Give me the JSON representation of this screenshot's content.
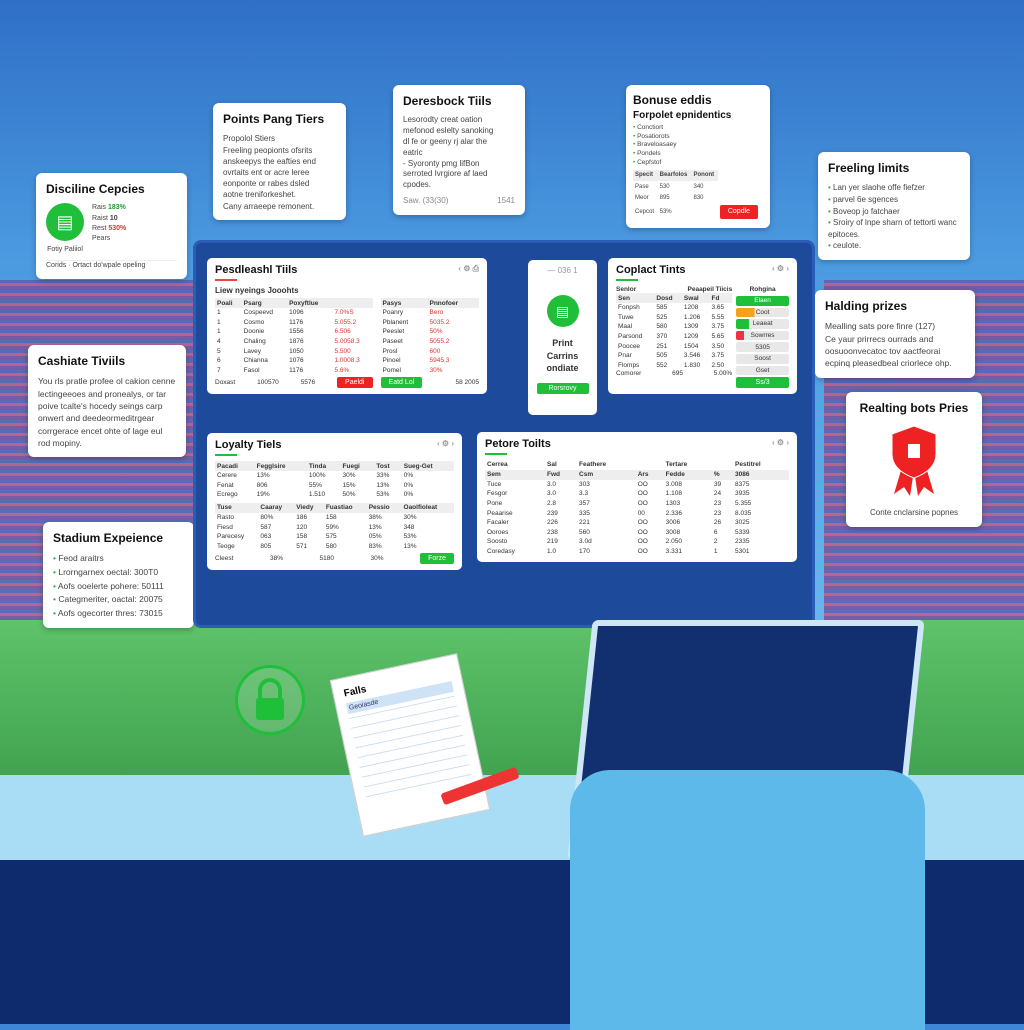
{
  "colors": {
    "accent_green": "#1fbf3a",
    "accent_red": "#ee2222",
    "frame": "#1d4a9b"
  },
  "cards": {
    "discipline": {
      "title": "Disciline Cepcies",
      "icon": "clipboard-icon",
      "label": "Fotiy Paliiol",
      "stats": [
        {
          "label": "Rais",
          "value": "183%"
        },
        {
          "label": "Raist",
          "value": "10"
        },
        {
          "label": "Rest",
          "value": "530%"
        },
        {
          "label": "Pears",
          "value": ""
        }
      ],
      "footer": "Corids · Ortact do'wpale opeling"
    },
    "points": {
      "title": "Points Pang Tiers",
      "lines": [
        "Propolol Stiers",
        "Freeling peopionts ofsrits",
        "anskeepys the eafties end",
        "ovrtaits ent or acre leree",
        "eonponte or rabes dsled",
        "aotne treniforkeshet.",
        "Cany arraeepe remonent."
      ]
    },
    "deresbock": {
      "title": "Deresbock Tiils",
      "lines": [
        "Lesorodty creat oation",
        "mefonod eslelty sanoking",
        "dl fe or geeny rj alar the",
        "eatric",
        "- Syoronty pmg lifBon",
        "serroted Ivrgiore af laed",
        "cpodes."
      ],
      "footer_left": "Saw. (33(30)",
      "footer_right": "1541"
    },
    "bonus": {
      "title": "Bonuse eddis",
      "subtitle": "Forpolet epnidentics",
      "items": [
        "Conctiort",
        "Posatiorots",
        "Braveloasaey",
        "Pondels",
        "Cepfstof"
      ],
      "table_headers": [
        "Specit",
        "Bearfolos",
        "Ponont"
      ],
      "rows": [
        [
          "Pase",
          "530",
          "340"
        ],
        [
          "Meor",
          "895",
          "830"
        ],
        [
          "Cepcot",
          "53%",
          ""
        ]
      ],
      "button": "Copdle"
    },
    "freeling": {
      "title": "Freeling limits",
      "items": [
        "Lan yer slaohe offe fiefzer",
        "parvel 6e sgences",
        "Boveop jo fatchaer",
        "Sroiry of lnpe sharn of tettorti wanc epitoces.",
        "ceulote."
      ]
    },
    "cashiate": {
      "title": "Cashiate Tiviils",
      "text": "You rls pratle profee ol cakion cenne lectingeeoes and pronealys, or tar poive tcalte's hocedy seings carp onwert and deedeormeditrgear corrgerace encet ohte of lage eul rod mopiny."
    },
    "stadium": {
      "title": "Stadium Expeience",
      "items": [
        "Feod araitrs",
        "Lrorngarnex oectal: 300T0",
        "Aofs ooelerte pohere: 50111",
        "Categmeriter, oactal: 20075",
        "Aofs ogecorter thres: 73015"
      ]
    },
    "halding": {
      "title": "Halding prizes",
      "line": "Mealling sats pore finre (127)",
      "text": "Ce yaur prirrecs ourrads and oosuoonvecatoc tov aactfeorai ecpinq pleasedbeal criorlece ohp."
    },
    "realting": {
      "title": "Realting bots Pries",
      "icon": "award-ribbon-icon",
      "footer": "Conte cnclarsine popnes"
    }
  },
  "dashboard": {
    "leaderboard": {
      "title": "Pesdleashl Tiils",
      "subtitle": "Liew nyeings Jooohts",
      "left_headers": [
        "Poali",
        "Psarg",
        "Poxyftlue",
        ""
      ],
      "left_rows": [
        [
          "1",
          "Cospeevd",
          "1096",
          "7.0%S"
        ],
        [
          "1",
          "Cosmo",
          "1176",
          "5.055.2"
        ],
        [
          "1",
          "Doonie",
          "1556",
          "6.506"
        ],
        [
          "4",
          "Chaling",
          "1876",
          "5.0058.3"
        ],
        [
          "5",
          "Lavey",
          "1050",
          "5.500"
        ],
        [
          "6",
          "Chianna",
          "1076",
          "1.0008.3"
        ],
        [
          "7",
          "Fasol",
          "1176",
          "5.6%"
        ]
      ],
      "left_footer": [
        "Doxast",
        "100570",
        "5576"
      ],
      "left_button": "Paeldi",
      "right_headers": [
        "Pasys",
        "Pnnofoer"
      ],
      "right_rows": [
        [
          "Poanry",
          "Bero"
        ],
        [
          "Pblanent",
          "5035.2"
        ],
        [
          "Peeslet",
          "50%"
        ],
        [
          "Paseet",
          "5055.2"
        ],
        [
          "Prosl",
          "600"
        ],
        [
          "Pinoel",
          "5945.3"
        ],
        [
          "Pomel",
          "30%"
        ]
      ],
      "right_button": "Eatd Lol",
      "right_footer": "58 2005"
    },
    "print": {
      "controls": "— 036 1",
      "icon": "document-icon",
      "text": "Print Carrins ondiate",
      "button": "Rorsrovy"
    },
    "coplact": {
      "title": "Coplact Tints",
      "top_headers": [
        "Senlor",
        "Peaapeil Tiicis",
        "Rohgina"
      ],
      "headers": [
        "Sen",
        "Dosd",
        "Swal",
        "Fd"
      ],
      "rows": [
        [
          "Fonpsh",
          "585",
          "1208",
          "3.65"
        ],
        [
          "Tuwe",
          "525",
          "1.206",
          "5.55"
        ],
        [
          "Maal",
          "580",
          "1309",
          "3.75"
        ],
        [
          "Parsond",
          "370",
          "1209",
          "5.65"
        ],
        [
          "Poocee",
          "251",
          "1504",
          "3.50"
        ],
        [
          "Pnar",
          "505",
          "3.546",
          "3.75"
        ],
        [
          "Flomps",
          "552",
          "1.830",
          "2.50"
        ]
      ],
      "footer": [
        "Comorer",
        "695",
        "5.00%"
      ],
      "pills": [
        {
          "label": "Elaen",
          "color": "#1fbf3a",
          "fill": 1
        },
        {
          "label": "Coot",
          "color": "#f7a21b",
          "fill": 0.35
        },
        {
          "label": "Leaeat",
          "color": "#1fbf3a",
          "fill": 0.25
        },
        {
          "label": "Sowrres",
          "color": "#ee3344",
          "fill": 0.15
        },
        {
          "label": "5305",
          "color": "#e8e8e8",
          "fill": 0
        },
        {
          "label": "Soost",
          "color": "#e8e8e8",
          "fill": 0
        },
        {
          "label": "Gset",
          "color": "#e8e8e8",
          "fill": 0
        }
      ],
      "button": "Ss/3"
    },
    "loyalty": {
      "title": "Loyalty Tiels",
      "headers": [
        "Pacadi",
        "Fegglsire",
        "Tinda",
        "Fuegi",
        "Tost",
        "Sueg-Get"
      ],
      "rows": [
        [
          "Cerere",
          "13%",
          "100%",
          "30%",
          "33%",
          "0%"
        ],
        [
          "Fenat",
          "806",
          "55%",
          "15%",
          "13%",
          "0%"
        ],
        [
          "Ecrego",
          "19%",
          "1.510",
          "50%",
          "53%",
          "0%"
        ]
      ],
      "headers2": [
        "Tuse",
        "Caaray",
        "Viedy",
        "Fuastiao",
        "Pessio",
        "Oaolfioleat"
      ],
      "rows2": [
        [
          "Rasto",
          "80%",
          "186",
          "158",
          "38%",
          "30%"
        ],
        [
          "Fiesd",
          "587",
          "120",
          "59%",
          "13%",
          "348"
        ],
        [
          "Parecesy",
          "063",
          "158",
          "575",
          "05%",
          "53%"
        ],
        [
          "Teoge",
          "805",
          "571",
          "580",
          "83%",
          "13%"
        ]
      ],
      "footer": [
        "Cleest",
        "38%",
        "5180",
        "30%"
      ],
      "button": "Forze"
    },
    "petore": {
      "title": "Petore Toilts",
      "top_headers": [
        "Cerrea",
        "Sal",
        "Feathere",
        "",
        "Tertare",
        "",
        "Pestitrel"
      ],
      "headers": [
        "Sem",
        "Fwd",
        "Csm",
        "Ars",
        "Fedde",
        "%",
        "3086"
      ],
      "rows": [
        [
          "Tuce",
          "3.0",
          "303",
          "OO",
          "3.008",
          "39",
          "8375"
        ],
        [
          "Fesgor",
          "3.0",
          "3.3",
          "OO",
          "1.108",
          "24",
          "3935"
        ],
        [
          "Pone",
          "2.8",
          "357",
          "OO",
          "1303",
          "23",
          "5.355"
        ],
        [
          "Peaarise",
          "239",
          "335",
          "00",
          "2.336",
          "23",
          "8.035"
        ],
        [
          "Facaler",
          "226",
          "221",
          "OO",
          "3006",
          "26",
          "3025"
        ],
        [
          "Ooroes",
          "238",
          "560",
          "OO",
          "3008",
          "6",
          "5339"
        ],
        [
          "Soosto",
          "219",
          "3.0d",
          "OO",
          "2.050",
          "2",
          "2335"
        ],
        [
          "Coredasy",
          "1.0",
          "170",
          "OO",
          "3.331",
          "1",
          "5301"
        ]
      ]
    }
  },
  "notebook": {
    "title": "Falls",
    "tab": "Geoiasde"
  }
}
